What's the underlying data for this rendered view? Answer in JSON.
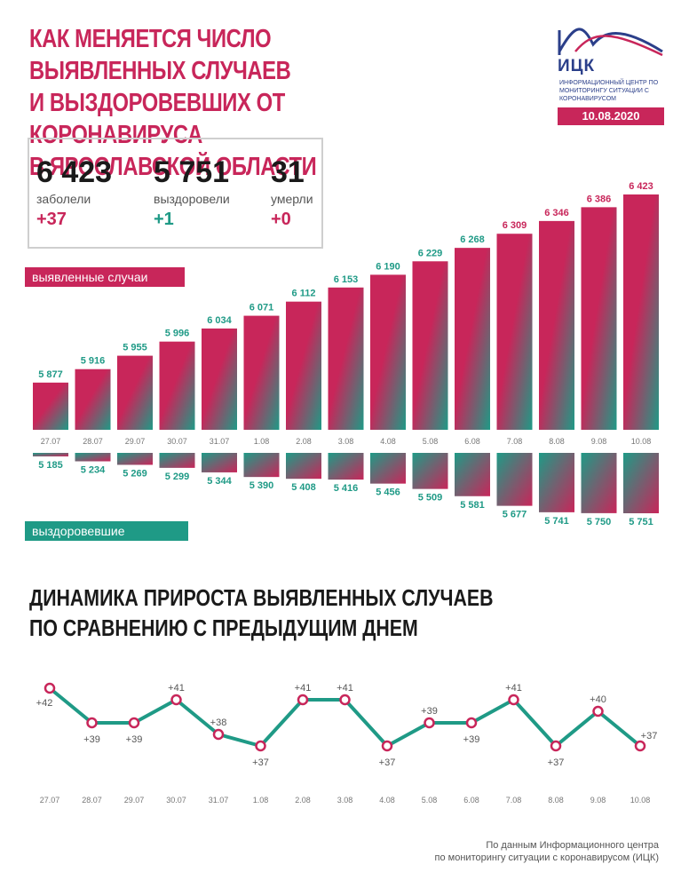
{
  "header": {
    "title_lines": [
      "Как меняется число выявленных случаев",
      "и выздоровевших от коронавируса",
      "в Ярославской области"
    ],
    "logo_text": "ИЦК",
    "logo_sub": "Информационный центр по мониторингу ситуации с коронавирусом",
    "date": "10.08.2020"
  },
  "stats": {
    "infected": {
      "value": "6 423",
      "label": "заболели",
      "delta": "+37"
    },
    "recovered": {
      "value": "5 751",
      "label": "выздоровели",
      "delta": "+1"
    },
    "died": {
      "value": "31",
      "label": "умерли",
      "delta": "+0"
    }
  },
  "labels": {
    "cases_pill": "выявленные случаи",
    "recovered_pill": "выздоровевшие",
    "dynamics_title_lines": [
      "Динамика прироста выявленных случаев",
      "по сравнению с предыдущим днем"
    ],
    "footer_lines": [
      "По данным Информационного центра",
      "по мониторингу ситуации с коронавирусом (ИЦК)"
    ]
  },
  "colors": {
    "pink": "#c8265a",
    "teal": "#1f9a86",
    "dark": "#1a1a1a"
  },
  "chart_data": [
    {
      "type": "bar",
      "categories": [
        "27.07",
        "28.07",
        "29.07",
        "30.07",
        "31.07",
        "1.08",
        "2.08",
        "3.08",
        "4.08",
        "5.08",
        "6.08",
        "7.08",
        "8.08",
        "9.08",
        "10.08"
      ],
      "series": [
        {
          "name": "выявленные случаи",
          "values": [
            5877,
            5916,
            5955,
            5996,
            6034,
            6071,
            6112,
            6153,
            6190,
            6229,
            6268,
            6309,
            6346,
            6386,
            6423
          ],
          "labels": [
            "5 877",
            "5 916",
            "5 955",
            "5 996",
            "6 034",
            "6 071",
            "6 112",
            "6 153",
            "6 190",
            "6 229",
            "6 268",
            "6 309",
            "6 346",
            "6 386",
            "6 423"
          ]
        },
        {
          "name": "выздоровевшие",
          "values": [
            5185,
            5234,
            5269,
            5299,
            5344,
            5390,
            5408,
            5416,
            5456,
            5509,
            5581,
            5677,
            5741,
            5750,
            5751
          ],
          "labels": [
            "5 185",
            "5 234",
            "5 269",
            "5 299",
            "5 344",
            "5 390",
            "5 408",
            "5 416",
            "5 456",
            "5 509",
            "5 581",
            "5 677",
            "5 741",
            "5 750",
            "5 751"
          ]
        }
      ]
    },
    {
      "type": "line",
      "x": [
        "27.07",
        "28.07",
        "29.07",
        "30.07",
        "31.07",
        "1.08",
        "2.08",
        "3.08",
        "4.08",
        "5.08",
        "6.08",
        "7.08",
        "8.08",
        "9.08",
        "10.08"
      ],
      "values": [
        42,
        39,
        39,
        41,
        38,
        37,
        41,
        41,
        37,
        39,
        39,
        41,
        37,
        40,
        37
      ],
      "labels": [
        "+42",
        "+39",
        "+39",
        "+41",
        "+38",
        "+37",
        "+41",
        "+41",
        "+37",
        "+39",
        "+39",
        "+41",
        "+37",
        "+40",
        "+37"
      ]
    }
  ]
}
